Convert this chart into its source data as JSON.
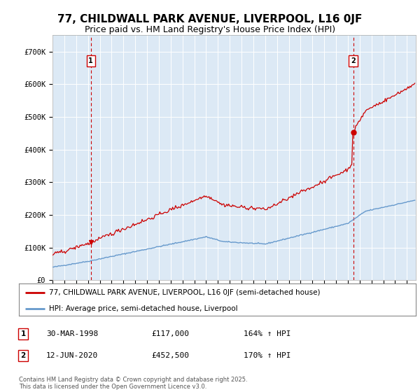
{
  "title": "77, CHILDWALL PARK AVENUE, LIVERPOOL, L16 0JF",
  "subtitle": "Price paid vs. HM Land Registry's House Price Index (HPI)",
  "background_color": "#ffffff",
  "plot_bg_color": "#dce9f5",
  "grid_color": "#ffffff",
  "ylim": [
    0,
    750000
  ],
  "yticks": [
    0,
    100000,
    200000,
    300000,
    400000,
    500000,
    600000,
    700000
  ],
  "ytick_labels": [
    "£0",
    "£100K",
    "£200K",
    "£300K",
    "£400K",
    "£500K",
    "£600K",
    "£700K"
  ],
  "xlim_start": 1995.0,
  "xlim_end": 2025.75,
  "transaction1_year": 1998.247,
  "transaction1_price": 117000,
  "transaction1_label": "1",
  "transaction2_year": 2020.45,
  "transaction2_price": 452500,
  "transaction2_label": "2",
  "legend_line1": "77, CHILDWALL PARK AVENUE, LIVERPOOL, L16 0JF (semi-detached house)",
  "legend_line2": "HPI: Average price, semi-detached house, Liverpool",
  "annotation1_date": "30-MAR-1998",
  "annotation1_price": "£117,000",
  "annotation1_hpi": "164% ↑ HPI",
  "annotation2_date": "12-JUN-2020",
  "annotation2_price": "£452,500",
  "annotation2_hpi": "170% ↑ HPI",
  "footer": "Contains HM Land Registry data © Crown copyright and database right 2025.\nThis data is licensed under the Open Government Licence v3.0.",
  "red_line_color": "#cc0000",
  "blue_line_color": "#6699cc",
  "title_fontsize": 11,
  "subtitle_fontsize": 9
}
